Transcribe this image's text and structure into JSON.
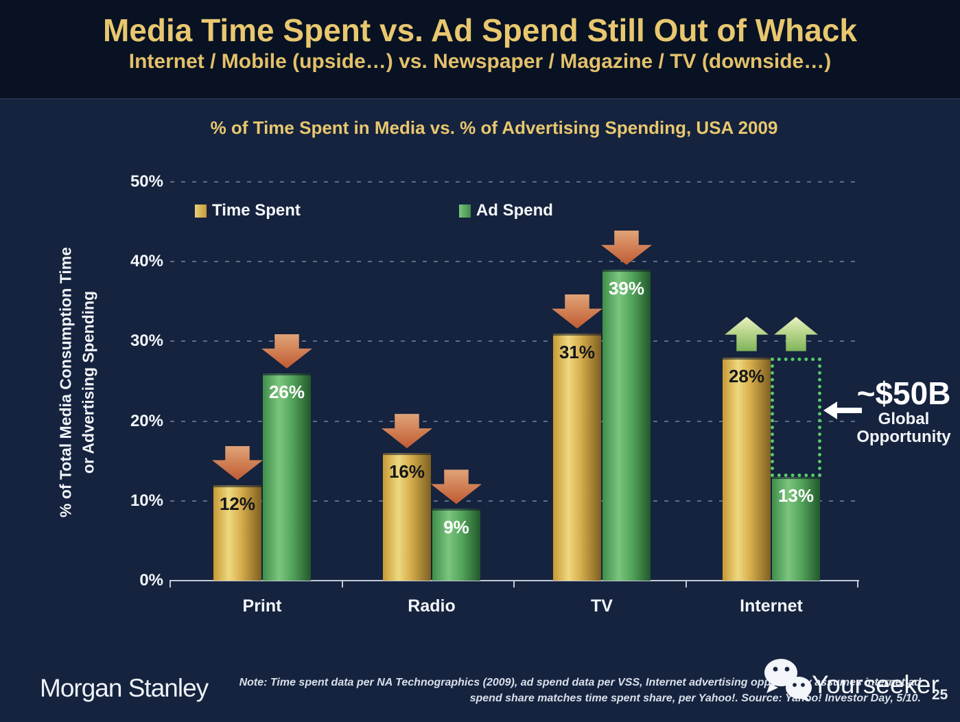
{
  "slide": {
    "title": "Media Time Spent vs. Ad Spend Still Out of Whack",
    "subtitle": "Internet / Mobile (upside…) vs. Newspaper / Magazine / TV (downside…)"
  },
  "chart_data": {
    "type": "bar",
    "title": "% of Time Spent in Media vs. % of Advertising Spending, USA 2009",
    "ylabel_line1": "% of Total Media Consumption Time",
    "ylabel_line2": "or Advertising Spending",
    "ylim": [
      0,
      50
    ],
    "grid": true,
    "legend_position": "top-left",
    "y_ticks": [
      {
        "pct": 50,
        "label": "50%"
      },
      {
        "pct": 40,
        "label": "40%"
      },
      {
        "pct": 30,
        "label": "30%"
      },
      {
        "pct": 20,
        "label": "20%"
      },
      {
        "pct": 10,
        "label": "10%"
      },
      {
        "pct": 0,
        "label": "0%"
      }
    ],
    "categories": [
      "Print",
      "Radio",
      "TV",
      "Internet"
    ],
    "series": [
      {
        "name": "Time Spent",
        "key": "time_spent",
        "color": "#D9AE4A",
        "values": [
          12,
          16,
          31,
          28
        ]
      },
      {
        "name": "Ad Spend",
        "key": "ad_spend",
        "color": "#58B368",
        "values": [
          26,
          9,
          39,
          13
        ]
      }
    ],
    "value_label_suffix": "%",
    "trend_arrows": [
      "down",
      "down",
      "down",
      "up"
    ],
    "annotation": {
      "value": "~$50B",
      "label_line1": "Global",
      "label_line2": "Opportunity",
      "category": "Internet",
      "gap_top_pct": 28,
      "gap_bottom_pct": 13
    }
  },
  "colors": {
    "header_bg": "#081223",
    "body_bg": "#15233E",
    "accent_gold": "#E8C76F",
    "down_arrow": "#C9653C",
    "up_arrow": "#9FC86F",
    "opportunity_box": "#58C96A"
  },
  "footer": {
    "brand": "Morgan Stanley",
    "note_line1": "Note: Time spent data per NA Technographics (2009), ad spend data per VSS, Internet advertising opportunity assumes internet ad",
    "note_line2": "spend share matches time spent share, per Yahoo!. Source: Yahoo! Investor Day, 5/10.",
    "watermark": "Yourseeker",
    "page_number": "25"
  }
}
